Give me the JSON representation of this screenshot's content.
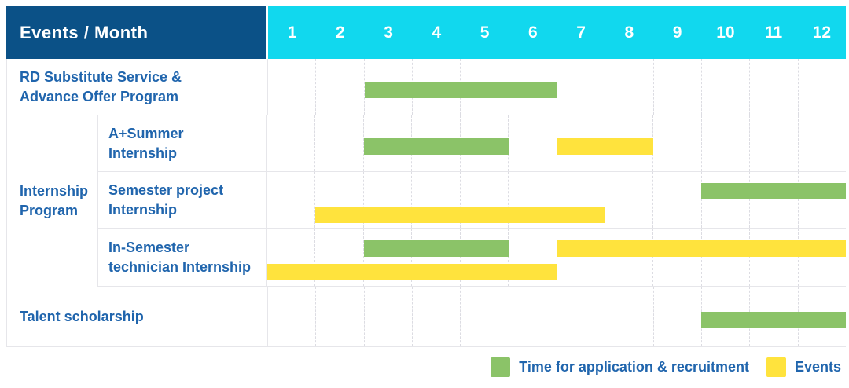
{
  "header": {
    "title": "Events / Month"
  },
  "colors": {
    "header_navy": "#0b5187",
    "header_cyan": "#11d8ee",
    "application_green": "#8bc368",
    "event_yellow": "#ffe33d",
    "label_blue": "#2065ad"
  },
  "legend": [
    {
      "key": "application",
      "label": "Time for application & recruitment",
      "color": "#8bc368"
    },
    {
      "key": "event",
      "label": "Events",
      "color": "#ffe33d"
    }
  ],
  "chart_data": {
    "type": "gantt",
    "unit": "month",
    "x_range": [
      1,
      12
    ],
    "months": [
      "1",
      "2",
      "3",
      "4",
      "5",
      "6",
      "7",
      "8",
      "9",
      "10",
      "11",
      "12"
    ],
    "bar_types": {
      "application": "Time for application & recruitment",
      "event": "Events"
    },
    "rows": [
      {
        "group": null,
        "label": "RD Substitute Service &\nAdvance Offer Program",
        "lines": [
          [
            {
              "type": "application",
              "start": 3,
              "end": 6
            }
          ]
        ]
      },
      {
        "group": "Internship\nProgram",
        "label": "A+Summer\nInternship",
        "lines": [
          [
            {
              "type": "application",
              "start": 3,
              "end": 5
            },
            {
              "type": "event",
              "start": 7,
              "end": 8
            }
          ]
        ]
      },
      {
        "group": "Internship\nProgram",
        "label": "Semester project\nInternship",
        "lines": [
          [
            {
              "type": "application",
              "start": 10,
              "end": 12
            }
          ],
          [
            {
              "type": "event",
              "start": 2,
              "end": 7
            }
          ]
        ]
      },
      {
        "group": "Internship\nProgram",
        "label": "In-Semester\ntechnician Internship",
        "lines": [
          [
            {
              "type": "application",
              "start": 3,
              "end": 5
            },
            {
              "type": "event",
              "start": 7,
              "end": 12
            }
          ],
          [
            {
              "type": "event",
              "start": 1,
              "end": 6
            }
          ]
        ]
      },
      {
        "group": null,
        "label": "Talent scholarship",
        "lines": [
          [
            {
              "type": "application",
              "start": 10,
              "end": 12
            }
          ]
        ]
      }
    ]
  }
}
